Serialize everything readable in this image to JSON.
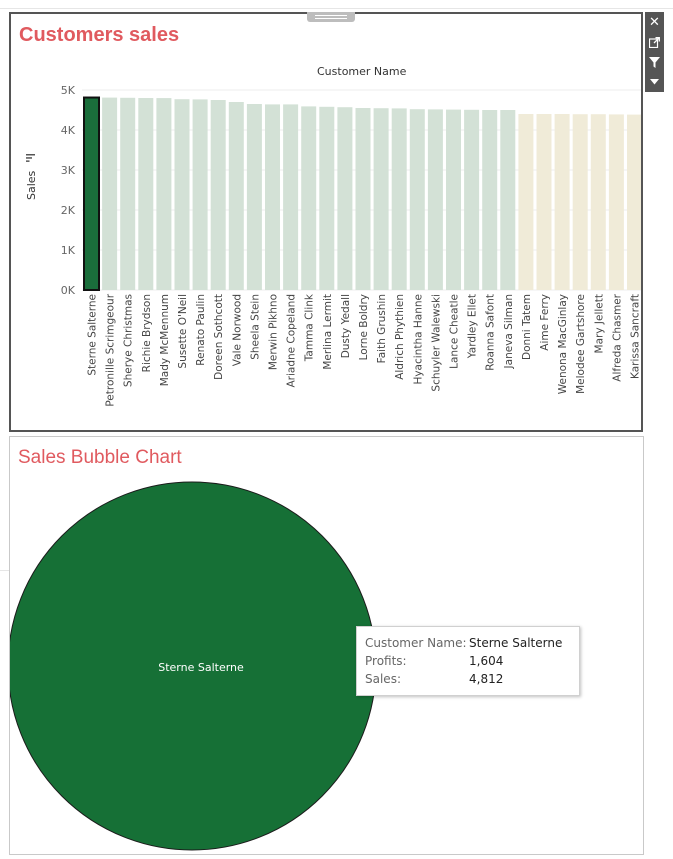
{
  "dashboard": {
    "top_title": "Customers sales",
    "bottom_title": "Sales Bubble Chart",
    "toolbar": {
      "icons": [
        "close-icon",
        "popout-icon",
        "filter-icon",
        "dropdown-arrow-icon"
      ],
      "close_glyph": "✕"
    }
  },
  "chart_data": [
    {
      "type": "bar",
      "title": "Customers sales",
      "column_header": "Customer Name",
      "ylabel": "Sales",
      "yticks": [
        "0K",
        "1K",
        "2K",
        "3K",
        "4K",
        "5K"
      ],
      "ylim": [
        0,
        5000
      ],
      "grid": true,
      "categories": [
        "Sterne Salterne",
        "Petronille Scrimgeour",
        "Sherye Christmas",
        "Richie Brydson",
        "Mady McMennum",
        "Susette O'Neil",
        "Renato Paulin",
        "Doreen Sothcott",
        "Vale Norwood",
        "Sheela Stein",
        "Merwin Pikhno",
        "Ariadne Copeland",
        "Tamma Clink",
        "Merlina Lermit",
        "Dusty Yedall",
        "Lorne Boldry",
        "Faith Grushin",
        "Aldrich Phythien",
        "Hyacintha Hanne",
        "Schuyler Walewski",
        "Lance Cheatle",
        "Yardley Ellet",
        "Roanna Safont",
        "Janeva Silman",
        "Donni Tatem",
        "Aime Ferry",
        "Wenona MacGinlay",
        "Melodee Gartshore",
        "Mary Jellett",
        "Alfreda Chasmer",
        "Karissa Sancraft"
      ],
      "values": [
        4812,
        4810,
        4805,
        4800,
        4798,
        4770,
        4765,
        4750,
        4700,
        4650,
        4640,
        4640,
        4590,
        4580,
        4570,
        4550,
        4545,
        4540,
        4520,
        4515,
        4510,
        4505,
        4500,
        4500,
        4400,
        4400,
        4400,
        4395,
        4395,
        4390,
        4385
      ],
      "colors": {
        "selected": "#1a6e3b",
        "green_faded": "#d3e1d6",
        "tan_faded": "#f0ebd8",
        "grid": "#ececec"
      },
      "tan_start_index": 24,
      "selected_index": 0
    },
    {
      "type": "scatter",
      "title": "Sales Bubble Chart",
      "bubbles": [
        {
          "label": "Sterne Salterne",
          "sales": 4812,
          "profits": 1604,
          "color": "#167036"
        }
      ]
    }
  ],
  "tooltip": {
    "rows": [
      {
        "key": "Customer Name:",
        "value": "Sterne Salterne"
      },
      {
        "key": "Profits:",
        "value": "1,604"
      },
      {
        "key": "Sales:",
        "value": "4,812"
      }
    ]
  }
}
